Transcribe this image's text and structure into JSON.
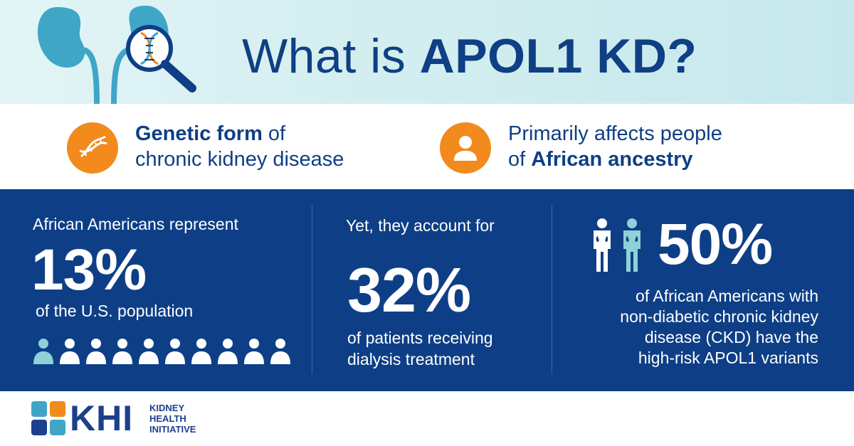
{
  "header": {
    "title_light": "What is ",
    "title_bold": "APOL1 KD?"
  },
  "facts": [
    {
      "icon": "dna-icon",
      "bold": "Genetic form",
      "rest_line1": " of",
      "line2": "chronic kidney disease"
    },
    {
      "icon": "person-icon",
      "line1": "Primarily affects people",
      "line2_plain": "of ",
      "line2_bold": "African ancestry"
    }
  ],
  "stats": {
    "col1": {
      "lead": "African Americans represent",
      "big": "13%",
      "tail": "of the U.S. population",
      "people_total": 10,
      "people_highlighted": 1
    },
    "col2": {
      "lead": "Yet, they account for",
      "big": "32%",
      "tail": "of patients receiving dialysis treatment"
    },
    "col3": {
      "big": "50%",
      "tail_lines": [
        "of African Americans with",
        "non-diabetic chronic kidney",
        "disease (CKD) have the",
        "high-risk APOL1 variants"
      ]
    }
  },
  "footer": {
    "logo_abbr": "KHI",
    "logo_words": [
      "KIDNEY",
      "HEALTH",
      "INITIATIVE"
    ]
  },
  "colors": {
    "navy": "#0e3f86",
    "orange": "#f28a1d",
    "teal": "#8fd1d8",
    "header_bg": "#d3eef0"
  }
}
